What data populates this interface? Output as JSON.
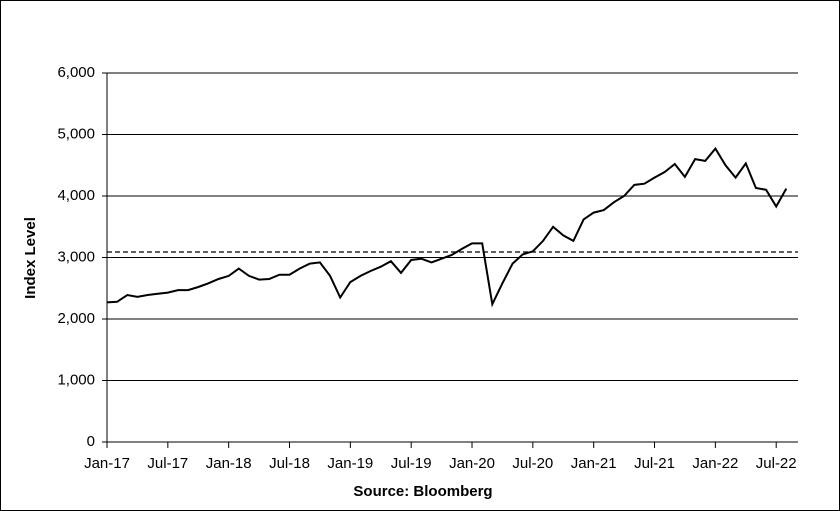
{
  "chart_data": {
    "type": "line",
    "y_label": "Index Level",
    "x_label": "Source: Bloomberg",
    "x": [
      "2017-01",
      "2017-02",
      "2017-03",
      "2017-04",
      "2017-05",
      "2017-06",
      "2017-07",
      "2017-08",
      "2017-09",
      "2017-10",
      "2017-11",
      "2017-12",
      "2018-01",
      "2018-02",
      "2018-03",
      "2018-04",
      "2018-05",
      "2018-06",
      "2018-07",
      "2018-08",
      "2018-09",
      "2018-10",
      "2018-11",
      "2018-12",
      "2019-01",
      "2019-02",
      "2019-03",
      "2019-04",
      "2019-05",
      "2019-06",
      "2019-07",
      "2019-08",
      "2019-09",
      "2019-10",
      "2019-11",
      "2019-12",
      "2020-01",
      "2020-02",
      "2020-03",
      "2020-04",
      "2020-05",
      "2020-06",
      "2020-07",
      "2020-08",
      "2020-09",
      "2020-10",
      "2020-11",
      "2020-12",
      "2021-01",
      "2021-02",
      "2021-03",
      "2021-04",
      "2021-05",
      "2021-06",
      "2021-07",
      "2021-08",
      "2021-09",
      "2021-10",
      "2021-11",
      "2021-12",
      "2022-01",
      "2022-02",
      "2022-03",
      "2022-04",
      "2022-05",
      "2022-06",
      "2022-07",
      "2022-08"
    ],
    "series": [
      {
        "color": "#000000",
        "values": [
          2270,
          2280,
          2390,
          2360,
          2390,
          2410,
          2430,
          2470,
          2470,
          2520,
          2580,
          2650,
          2700,
          2820,
          2700,
          2640,
          2650,
          2720,
          2720,
          2820,
          2900,
          2920,
          2700,
          2350,
          2600,
          2700,
          2780,
          2850,
          2940,
          2750,
          2960,
          2980,
          2920,
          2980,
          3040,
          3140,
          3230,
          3230,
          2240,
          2580,
          2900,
          3050,
          3100,
          3270,
          3500,
          3360,
          3270,
          3620,
          3730,
          3770,
          3900,
          4000,
          4180,
          4200,
          4300,
          4390,
          4520,
          4310,
          4600,
          4570,
          4770,
          4500,
          4300,
          4530,
          4130,
          4100,
          3830,
          4120
        ]
      }
    ],
    "hlines": [
      {
        "value": 3090,
        "style": "dashed"
      }
    ],
    "xlim": [
      "2017-01",
      "2022-08"
    ],
    "xticks": [
      {
        "value": "2017-01",
        "label": "Jan-17"
      },
      {
        "value": "2017-07",
        "label": "Jul-17"
      },
      {
        "value": "2018-01",
        "label": "Jan-18"
      },
      {
        "value": "2018-07",
        "label": "Jul-18"
      },
      {
        "value": "2019-01",
        "label": "Jan-19"
      },
      {
        "value": "2019-07",
        "label": "Jul-19"
      },
      {
        "value": "2020-01",
        "label": "Jan-20"
      },
      {
        "value": "2020-07",
        "label": "Jul-20"
      },
      {
        "value": "2021-01",
        "label": "Jan-21"
      },
      {
        "value": "2021-07",
        "label": "Jul-21"
      },
      {
        "value": "2022-01",
        "label": "Jan-22"
      },
      {
        "value": "2022-07",
        "label": "Jul-22"
      }
    ],
    "ylim": [
      0,
      6000
    ],
    "yticks": [
      0,
      {
        "value": 1000,
        "label": "1,000"
      },
      {
        "value": 2000,
        "label": "2,000"
      },
      {
        "value": 3000,
        "label": "3,000"
      },
      {
        "value": 4000,
        "label": "4,000"
      },
      {
        "value": 5000,
        "label": "5,000"
      },
      {
        "value": 6000,
        "label": "6,000"
      }
    ],
    "grid": true
  }
}
